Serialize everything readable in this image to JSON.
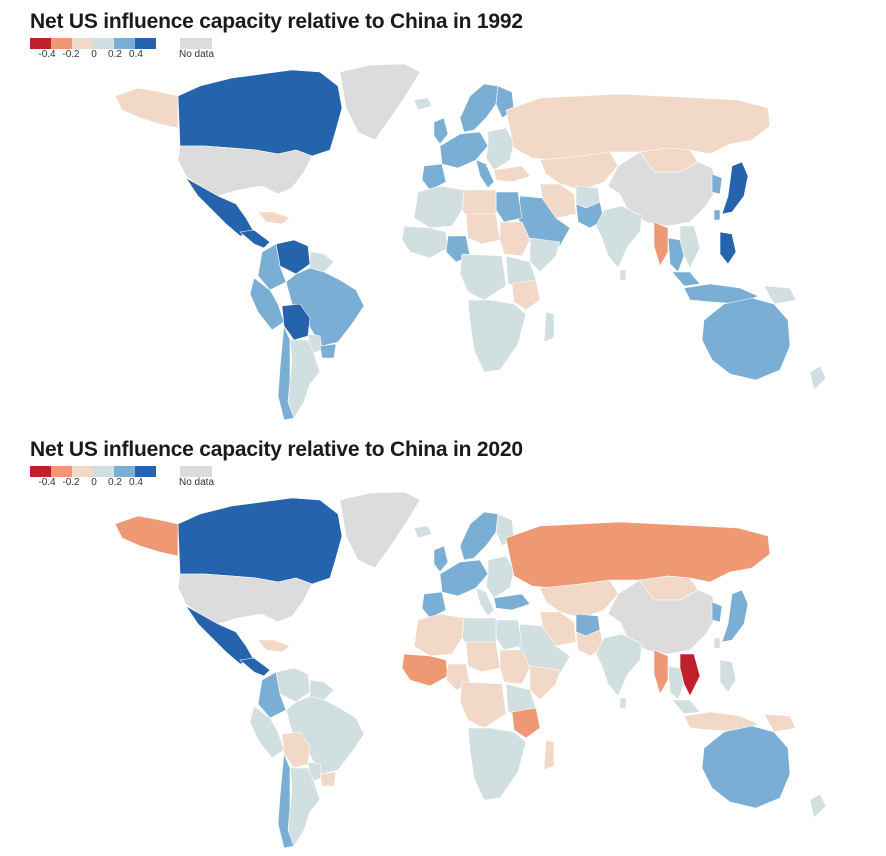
{
  "colors": {
    "neg4": "#c0202c",
    "neg2": "#ef9874",
    "neg1": "#f2d8c6",
    "zero": "#d1dfe0",
    "pos2": "#7aaed5",
    "pos4": "#2563ad",
    "nodata": "#dcdcdc"
  },
  "legend": {
    "ticks": [
      "-0.4",
      "-0.2",
      "0",
      "0.2",
      "0.4"
    ],
    "nodata_label": "No data"
  },
  "maps": [
    {
      "title": "Net US influence capacity relative to China in 1992",
      "year": 1992,
      "regions": {
        "greenland": "nodata",
        "alaska": "neg1",
        "canada": "pos4",
        "usa": "nodata",
        "mexico": "pos4",
        "central_america": "pos4",
        "caribbean": "neg1",
        "venezuela": "pos4",
        "colombia": "pos2",
        "guianas": "zero",
        "peru": "pos2",
        "brazil": "pos2",
        "bolivia": "pos4",
        "paraguay": "zero",
        "argentina": "zero",
        "chile": "pos2",
        "uruguay": "pos2",
        "iceland": "zero",
        "scandinavia": "pos2",
        "finland": "pos2",
        "uk": "pos2",
        "w_europe": "pos2",
        "e_europe": "zero",
        "iberia": "pos2",
        "italy": "pos2",
        "turkey": "neg1",
        "russia": "neg1",
        "central_asia": "neg1",
        "mongolia": "neg1",
        "china": "nodata",
        "korea": "pos2",
        "japan": "pos4",
        "taiwan": "pos2",
        "iran": "neg1",
        "afghanistan": "zero",
        "pakistan": "pos2",
        "india": "zero",
        "arabia": "pos2",
        "egypt": "pos2",
        "libya": "neg1",
        "n_africa": "zero",
        "w_africa": "zero",
        "nigeria": "pos2",
        "sahel": "neg1",
        "sudan": "neg1",
        "horn": "zero",
        "c_africa": "zero",
        "e_africa": "zero",
        "tanzania": "neg1",
        "s_africa": "zero",
        "madagascar": "zero",
        "myanmar": "neg2",
        "thailand": "pos2",
        "indochina": "zero",
        "philippines": "pos4",
        "malaysia": "pos2",
        "indonesia": "pos2",
        "png": "zero",
        "australia": "pos2",
        "new_zealand": "zero",
        "sri_lanka": "zero"
      }
    },
    {
      "title": "Net US influence capacity relative to China in 2020",
      "year": 2020,
      "regions": {
        "greenland": "nodata",
        "alaska": "neg2",
        "canada": "pos4",
        "usa": "nodata",
        "mexico": "pos4",
        "central_america": "pos4",
        "caribbean": "neg1",
        "venezuela": "zero",
        "colombia": "pos2",
        "guianas": "zero",
        "peru": "zero",
        "brazil": "zero",
        "bolivia": "neg1",
        "paraguay": "zero",
        "argentina": "zero",
        "chile": "pos2",
        "uruguay": "neg1",
        "iceland": "zero",
        "scandinavia": "pos2",
        "finland": "zero",
        "uk": "pos2",
        "w_europe": "pos2",
        "e_europe": "zero",
        "iberia": "pos2",
        "italy": "zero",
        "turkey": "pos2",
        "russia": "neg2",
        "central_asia": "neg1",
        "mongolia": "neg1",
        "china": "nodata",
        "korea": "pos2",
        "japan": "pos2",
        "taiwan": "zero",
        "iran": "neg1",
        "afghanistan": "pos2",
        "pakistan": "neg1",
        "india": "zero",
        "arabia": "zero",
        "egypt": "zero",
        "libya": "zero",
        "n_africa": "neg1",
        "w_africa": "neg2",
        "nigeria": "neg1",
        "sahel": "neg1",
        "sudan": "neg1",
        "horn": "neg1",
        "c_africa": "neg1",
        "e_africa": "zero",
        "tanzania": "neg2",
        "s_africa": "zero",
        "madagascar": "neg1",
        "myanmar": "neg2",
        "thailand": "zero",
        "indochina": "neg4",
        "philippines": "zero",
        "malaysia": "zero",
        "indonesia": "neg1",
        "png": "neg1",
        "australia": "pos2",
        "new_zealand": "zero",
        "sri_lanka": "zero"
      }
    }
  ]
}
